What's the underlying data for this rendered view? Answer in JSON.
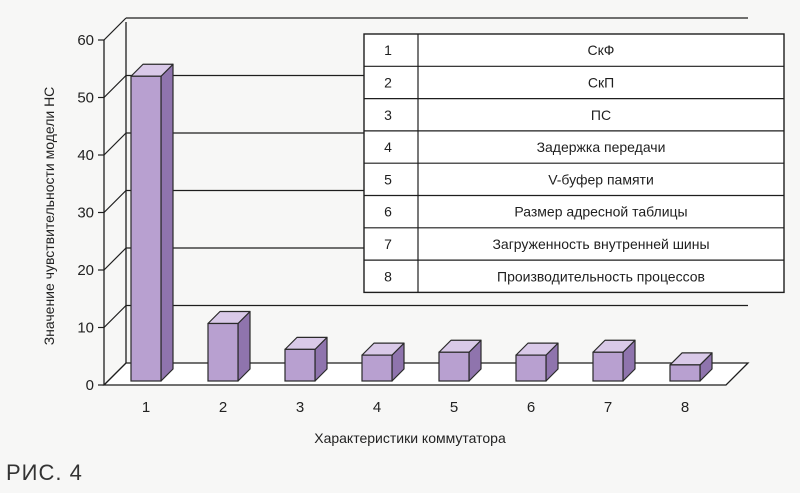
{
  "colors": {
    "bar_front": "#b8a0d0",
    "bar_top": "#d9c9e8",
    "bar_side": "#8f74ad",
    "outline": "#2a2a2a",
    "grid": "#1e1e1e",
    "floor": "#ffffff"
  },
  "caption": "РИС. 4",
  "chart_data": {
    "type": "bar",
    "categories": [
      "1",
      "2",
      "3",
      "4",
      "5",
      "6",
      "7",
      "8"
    ],
    "values": [
      53,
      10,
      5.5,
      4.5,
      5,
      4.5,
      5,
      2.8
    ],
    "ylim": [
      0,
      60
    ],
    "yticks": [
      0,
      10,
      20,
      30,
      40,
      50,
      60
    ],
    "xlabel": "Характеристики коммутатора",
    "ylabel": "Значение чувствительности модели НС",
    "grid": true,
    "legend_table": [
      {
        "num": "1",
        "label": "СкФ"
      },
      {
        "num": "2",
        "label": "СкП"
      },
      {
        "num": "3",
        "label": "ПС"
      },
      {
        "num": "4",
        "label": "Задержка передачи"
      },
      {
        "num": "5",
        "label": "V-буфер памяти"
      },
      {
        "num": "6",
        "label": "Размер адресной таблицы"
      },
      {
        "num": "7",
        "label": "Загруженность внутренней шины"
      },
      {
        "num": "8",
        "label": "Производительность процессов"
      }
    ],
    "legend_position": "top-right"
  }
}
